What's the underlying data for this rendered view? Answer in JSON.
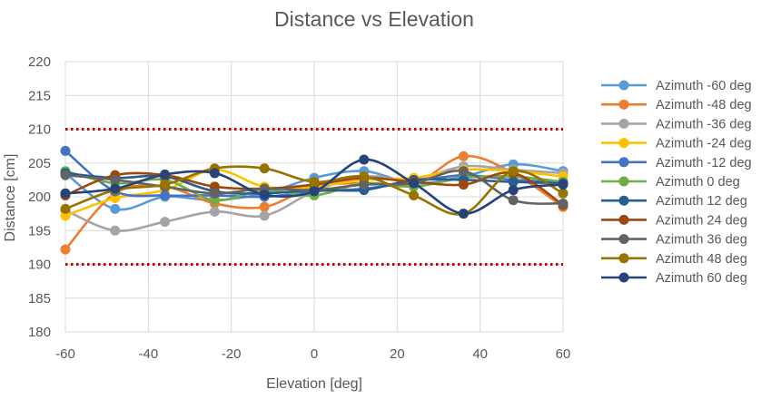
{
  "chart_data": {
    "type": "line",
    "title": "Distance vs Elevation",
    "xlabel": "Elevation [deg]",
    "ylabel": "Distance [cm]",
    "xlim": [
      -60,
      60
    ],
    "ylim": [
      180,
      220
    ],
    "xticks": [
      -60,
      -40,
      -20,
      0,
      20,
      40,
      60
    ],
    "yticks": [
      180,
      185,
      190,
      195,
      200,
      205,
      210,
      215,
      220
    ],
    "grid": true,
    "legend": "right",
    "x": [
      -60,
      -48,
      -36,
      -24,
      -12,
      0,
      12,
      24,
      36,
      48,
      60
    ],
    "reference_lines": [
      {
        "y": 210,
        "color": "#C00000",
        "style": "dotted"
      },
      {
        "y": 190,
        "color": "#C00000",
        "style": "dotted"
      }
    ],
    "series": [
      {
        "name": "Azimuth -60 deg",
        "color": "#5B9BD5",
        "values": [
          203.5,
          198.2,
          200.0,
          199.5,
          200.5,
          202.8,
          203.8,
          202.0,
          203.0,
          204.8,
          203.8
        ]
      },
      {
        "name": "Azimuth -48 deg",
        "color": "#ED7D31",
        "values": [
          192.2,
          200.5,
          201.5,
          199.0,
          198.5,
          201.5,
          202.0,
          201.8,
          206.0,
          203.5,
          198.5
        ]
      },
      {
        "name": "Azimuth -36 deg",
        "color": "#A5A5A5",
        "values": [
          198.0,
          195.0,
          196.3,
          197.8,
          197.2,
          200.8,
          203.0,
          202.5,
          204.5,
          204.0,
          203.5
        ]
      },
      {
        "name": "Azimuth -24 deg",
        "color": "#FFC000",
        "values": [
          197.2,
          199.8,
          201.0,
          204.0,
          201.5,
          201.5,
          202.5,
          202.8,
          204.0,
          203.8,
          203.0
        ]
      },
      {
        "name": "Azimuth -12 deg",
        "color": "#4472C4",
        "values": [
          206.8,
          200.8,
          200.2,
          200.2,
          200.0,
          200.8,
          201.2,
          202.2,
          203.2,
          202.5,
          202.2
        ]
      },
      {
        "name": "Azimuth 0 deg",
        "color": "#70AD47",
        "values": [
          203.8,
          202.0,
          202.5,
          199.5,
          201.0,
          200.2,
          202.0,
          201.5,
          202.8,
          203.0,
          202.2
        ]
      },
      {
        "name": "Azimuth 12 deg",
        "color": "#255E91",
        "values": [
          203.5,
          202.8,
          203.0,
          200.8,
          200.5,
          201.0,
          201.0,
          202.5,
          202.5,
          202.2,
          202.0
        ]
      },
      {
        "name": "Azimuth 24 deg",
        "color": "#9E480E",
        "values": [
          200.2,
          203.2,
          203.2,
          201.5,
          201.2,
          201.8,
          202.8,
          202.2,
          201.8,
          203.5,
          198.8
        ]
      },
      {
        "name": "Azimuth 36 deg",
        "color": "#636363",
        "values": [
          203.2,
          202.5,
          201.5,
          200.5,
          201.2,
          201.0,
          201.8,
          202.0,
          203.8,
          199.5,
          199.0
        ]
      },
      {
        "name": "Azimuth 48 deg",
        "color": "#997300",
        "values": [
          198.2,
          201.0,
          201.8,
          204.2,
          204.2,
          202.2,
          203.0,
          200.2,
          197.5,
          203.8,
          200.5
        ]
      },
      {
        "name": "Azimuth 60 deg",
        "color": "#264478",
        "values": [
          200.5,
          201.2,
          203.3,
          203.5,
          200.3,
          200.8,
          205.5,
          202.0,
          197.5,
          201.0,
          201.8
        ]
      }
    ]
  }
}
